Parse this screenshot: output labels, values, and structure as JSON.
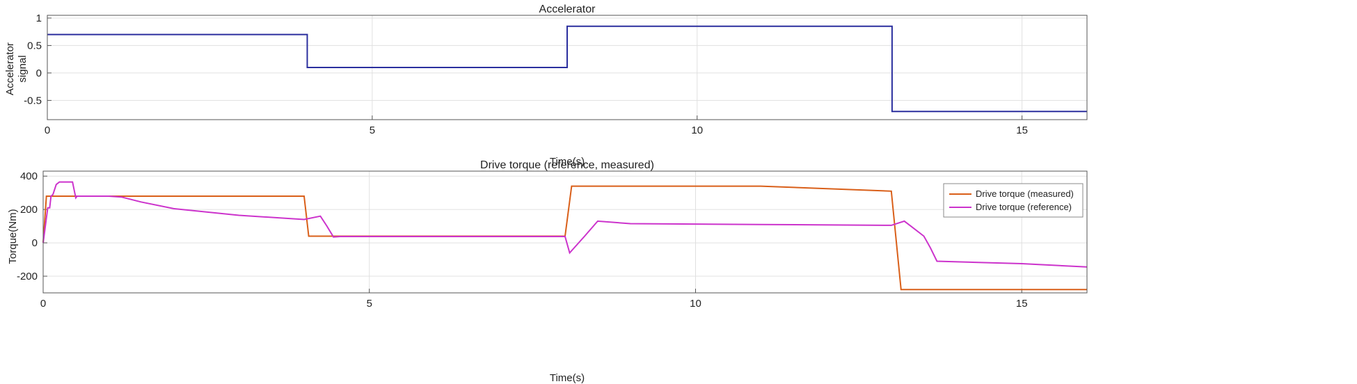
{
  "chart_data": [
    {
      "type": "line",
      "title": "Accelerator",
      "xlabel": "Time(s)",
      "ylabel_lines": [
        "Accelerator",
        "signal"
      ],
      "xlim": [
        0,
        16
      ],
      "ylim": [
        -0.85,
        1.05
      ],
      "xticks": [
        0,
        5,
        10,
        15
      ],
      "xtick_labels": [
        "0",
        "5",
        "10",
        "15"
      ],
      "yticks": [
        1,
        0.5,
        0,
        -0.5
      ],
      "ytick_labels": [
        "1",
        "0.5",
        "0",
        "-0.5"
      ],
      "grid": true,
      "legend": "none",
      "colors": {
        "series": [
          "#2b2f9e"
        ],
        "grid": "#e0e0e0",
        "axes": "#555555"
      },
      "series": [
        {
          "x": [
            0,
            4,
            4,
            8,
            8,
            13,
            13,
            16
          ],
          "y": [
            0.7,
            0.7,
            0.1,
            0.1,
            0.85,
            0.85,
            -0.7,
            -0.7
          ]
        }
      ]
    },
    {
      "type": "line",
      "title": "Drive torque (reference, measured)",
      "xlabel": "Time(s)",
      "ylabel_lines": [
        "Torque(Nm)"
      ],
      "xlim": [
        0,
        16
      ],
      "ylim": [
        -300,
        430
      ],
      "xticks": [
        0,
        5,
        10,
        15
      ],
      "xtick_labels": [
        "0",
        "5",
        "10",
        "15"
      ],
      "yticks": [
        400,
        200,
        0,
        -200
      ],
      "ytick_labels": [
        "400",
        "200",
        "0",
        "-200"
      ],
      "grid": true,
      "legend": "top-right",
      "colors": {
        "series": [
          "#d95f19",
          "#cc33cc"
        ],
        "grid": "#e0e0e0",
        "axes": "#555555"
      },
      "series": [
        {
          "name": "Drive torque (measured)",
          "x": [
            0,
            0.05,
            0.1,
            4,
            4.07,
            4.4,
            8,
            8.1,
            11,
            13,
            13.15,
            16
          ],
          "y": [
            0,
            280,
            280,
            280,
            40,
            40,
            40,
            340,
            340,
            310,
            -280,
            -280
          ]
        },
        {
          "name": "Drive torque (reference)",
          "x": [
            0,
            0.07,
            0.1,
            0.12,
            0.15,
            0.2,
            0.25,
            0.3,
            0.45,
            0.5,
            0.52,
            0.55,
            1.0,
            1.2,
            1.5,
            2.0,
            3.0,
            4.0,
            4.25,
            4.35,
            4.45,
            4.55,
            5,
            8,
            8.07,
            8.3,
            8.5,
            9,
            11,
            13,
            13.2,
            13.3,
            13.5,
            13.6,
            13.7,
            15,
            16
          ],
          "y": [
            0,
            210,
            210,
            280,
            290,
            350,
            365,
            365,
            365,
            270,
            280,
            280,
            280,
            275,
            245,
            205,
            165,
            140,
            160,
            100,
            35,
            38,
            38,
            38,
            -60,
            40,
            130,
            115,
            110,
            105,
            130,
            100,
            40,
            -30,
            -110,
            -125,
            -145
          ]
        }
      ]
    }
  ]
}
